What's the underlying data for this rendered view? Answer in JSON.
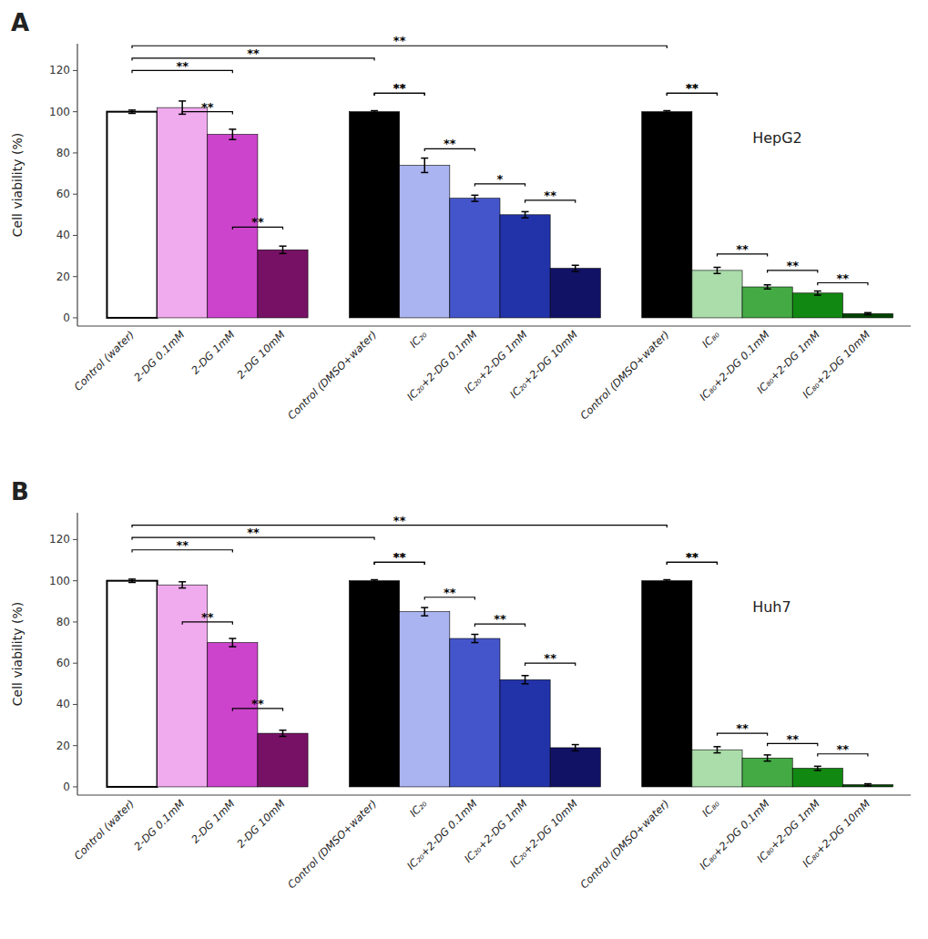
{
  "chart_data": [
    {
      "type": "bar",
      "title": "A",
      "annotations": [
        "HepG2"
      ],
      "y_label": "Cell viability (%)",
      "ylim": [
        -4,
        133
      ],
      "yticks": [
        0,
        20,
        40,
        60,
        80,
        100,
        120
      ],
      "grid": false,
      "groups": [
        {
          "categories": [
            "Control (water)",
            "2-DG 0.1mM",
            "2-DG 1mM",
            "2-DG 10mM"
          ],
          "values": [
            100,
            102,
            89,
            33
          ],
          "errors": [
            0.8,
            3.2,
            2.5,
            1.8
          ],
          "colors": [
            "#ffffff",
            "#f0aaee",
            "#cc44cc",
            "#771166"
          ]
        },
        {
          "categories": [
            "Control (DMSO+water)",
            "IC₂₀",
            "IC₂₀+2-DG 0.1mM",
            "IC₂₀+2-DG 1mM",
            "IC₂₀+2-DG 10mM"
          ],
          "values": [
            100,
            74,
            58,
            50,
            24
          ],
          "errors": [
            0.5,
            3.5,
            1.5,
            1.5,
            1.5
          ],
          "colors": [
            "#000000",
            "#aab4f0",
            "#4455cc",
            "#2233aa",
            "#111166"
          ]
        },
        {
          "categories": [
            "Control (DMSO+water)",
            "IC₈₀",
            "IC₈₀+2-DG 0.1mM",
            "IC₈₀+2-DG 1mM",
            "IC₈₀+2-DG 10mM"
          ],
          "values": [
            100,
            23,
            15,
            12,
            2
          ],
          "errors": [
            0.5,
            1.5,
            1.0,
            1.0,
            0.5
          ],
          "colors": [
            "#000000",
            "#aaddaa",
            "#44aa44",
            "#118811",
            "#004400"
          ]
        }
      ],
      "brackets": [
        {
          "from": [
            0,
            1
          ],
          "to": [
            0,
            2
          ],
          "y": 100,
          "label": "**"
        },
        {
          "from": [
            0,
            2
          ],
          "to": [
            0,
            3
          ],
          "y": 44,
          "label": "**"
        },
        {
          "from": [
            1,
            0
          ],
          "to": [
            1,
            1
          ],
          "y": 109,
          "label": "**"
        },
        {
          "from": [
            1,
            1
          ],
          "to": [
            1,
            2
          ],
          "y": 82,
          "label": "**"
        },
        {
          "from": [
            1,
            2
          ],
          "to": [
            1,
            3
          ],
          "y": 65,
          "label": "*"
        },
        {
          "from": [
            1,
            3
          ],
          "to": [
            1,
            4
          ],
          "y": 57,
          "label": "**"
        },
        {
          "from": [
            2,
            0
          ],
          "to": [
            2,
            1
          ],
          "y": 109,
          "label": "**"
        },
        {
          "from": [
            2,
            1
          ],
          "to": [
            2,
            2
          ],
          "y": 31,
          "label": "**"
        },
        {
          "from": [
            2,
            2
          ],
          "to": [
            2,
            3
          ],
          "y": 23,
          "label": "**"
        },
        {
          "from": [
            2,
            3
          ],
          "to": [
            2,
            4
          ],
          "y": 17,
          "label": "**"
        },
        {
          "from": [
            0,
            0
          ],
          "to": [
            0,
            2
          ],
          "y": 120,
          "label": "**"
        },
        {
          "from": [
            0,
            0
          ],
          "to": [
            1,
            0
          ],
          "y": 126,
          "label": "**"
        },
        {
          "from": [
            0,
            0
          ],
          "to": [
            2,
            0
          ],
          "y": 132,
          "label": "**"
        },
        {
          "from": [
            1,
            0
          ],
          "to": [
            1,
            1
          ],
          "y": 109,
          "label": "**"
        },
        {
          "from": [
            2,
            0
          ],
          "to": [
            2,
            1
          ],
          "y": 109,
          "label": "**"
        }
      ]
    },
    {
      "type": "bar",
      "title": "B",
      "annotations": [
        "Huh7"
      ],
      "y_label": "Cell viability (%)",
      "ylim": [
        -4,
        133
      ],
      "yticks": [
        0,
        20,
        40,
        60,
        80,
        100,
        120
      ],
      "grid": false,
      "groups": [
        {
          "categories": [
            "Control (water)",
            "2-DG 0.1mM",
            "2-DG 1mM",
            "2-DG 10mM"
          ],
          "values": [
            100,
            98,
            70,
            26
          ],
          "errors": [
            0.8,
            1.5,
            2.0,
            1.5
          ],
          "colors": [
            "#ffffff",
            "#f0aaee",
            "#cc44cc",
            "#771166"
          ]
        },
        {
          "categories": [
            "Control (DMSO+water)",
            "IC₂₀",
            "IC₂₀+2-DG 0.1mM",
            "IC₂₀+2-DG 1mM",
            "IC₂₀+2-DG 10mM"
          ],
          "values": [
            100,
            85,
            72,
            52,
            19
          ],
          "errors": [
            0.5,
            2.0,
            2.0,
            2.0,
            1.5
          ],
          "colors": [
            "#000000",
            "#aab4f0",
            "#4455cc",
            "#2233aa",
            "#111166"
          ]
        },
        {
          "categories": [
            "Control (DMSO+water)",
            "IC₈₀",
            "IC₈₀+2-DG 0.1mM",
            "IC₈₀+2-DG 1mM",
            "IC₈₀+2-DG 10mM"
          ],
          "values": [
            100,
            18,
            14,
            9,
            1
          ],
          "errors": [
            0.5,
            1.5,
            1.5,
            1.0,
            0.5
          ],
          "colors": [
            "#000000",
            "#aaddaa",
            "#44aa44",
            "#118811",
            "#004400"
          ]
        }
      ],
      "brackets": [
        {
          "from": [
            0,
            1
          ],
          "to": [
            0,
            2
          ],
          "y": 80,
          "label": "**"
        },
        {
          "from": [
            0,
            2
          ],
          "to": [
            0,
            3
          ],
          "y": 38,
          "label": "**"
        },
        {
          "from": [
            1,
            0
          ],
          "to": [
            1,
            1
          ],
          "y": 109,
          "label": "**"
        },
        {
          "from": [
            1,
            1
          ],
          "to": [
            1,
            2
          ],
          "y": 92,
          "label": "**"
        },
        {
          "from": [
            1,
            2
          ],
          "to": [
            1,
            3
          ],
          "y": 79,
          "label": "**"
        },
        {
          "from": [
            1,
            3
          ],
          "to": [
            1,
            4
          ],
          "y": 60,
          "label": "**"
        },
        {
          "from": [
            2,
            0
          ],
          "to": [
            2,
            1
          ],
          "y": 109,
          "label": "**"
        },
        {
          "from": [
            2,
            1
          ],
          "to": [
            2,
            2
          ],
          "y": 26,
          "label": "**"
        },
        {
          "from": [
            2,
            2
          ],
          "to": [
            2,
            3
          ],
          "y": 21,
          "label": "**"
        },
        {
          "from": [
            2,
            3
          ],
          "to": [
            2,
            4
          ],
          "y": 16,
          "label": "**"
        },
        {
          "from": [
            0,
            0
          ],
          "to": [
            0,
            2
          ],
          "y": 115,
          "label": "**"
        },
        {
          "from": [
            0,
            0
          ],
          "to": [
            1,
            0
          ],
          "y": 121,
          "label": "**"
        },
        {
          "from": [
            0,
            0
          ],
          "to": [
            2,
            0
          ],
          "y": 127,
          "label": "**"
        },
        {
          "from": [
            1,
            0
          ],
          "to": [
            1,
            1
          ],
          "y": 109,
          "label": "**"
        },
        {
          "from": [
            2,
            0
          ],
          "to": [
            2,
            1
          ],
          "y": 109,
          "label": "**"
        }
      ]
    }
  ]
}
